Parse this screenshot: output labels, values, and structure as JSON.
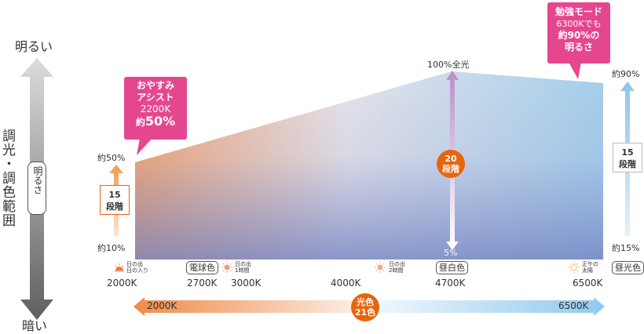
{
  "left_axis": {
    "top_label": "明るい",
    "bottom_label": "暗い",
    "title": "調光・調色範囲",
    "bar_label": "明るさ"
  },
  "callouts": {
    "oyasumi": {
      "line1": "おやすみ",
      "line2": "アシスト",
      "line3": "2200K",
      "line4_prefix": "約",
      "line4_value": "50%"
    },
    "benkyo": {
      "line1": "勉強モード",
      "line2": "6300Kでも",
      "line3": "約90%の",
      "line4": "明るさ"
    }
  },
  "chart": {
    "left_top": "約50%",
    "left_bottom": "約10%",
    "left_steps": {
      "line1": "15",
      "line2": "段階"
    },
    "right_top": "約90%",
    "right_bottom": "約15%",
    "right_steps": {
      "line1": "15",
      "line2": "段階"
    },
    "peak_label": "100%全光",
    "peak_bottom": "5%",
    "center_steps": {
      "line1": "20",
      "line2": "段階"
    }
  },
  "color_points": [
    {
      "kelvin": "2000K",
      "note_l1": "日の出",
      "note_l2": "日の入り"
    },
    {
      "kelvin": "2700K",
      "badge": "電球色"
    },
    {
      "kelvin": "3000K",
      "note_l1": "日の出",
      "note_l2": "1時間"
    },
    {
      "kelvin": "4000K"
    },
    {
      "kelvin": "4700K",
      "badge": "昼白色",
      "note_l1": "日の出",
      "note_l2": "2時間"
    },
    {
      "kelvin": "6500K",
      "note_l1": "正午の",
      "note_l2": "太陽"
    }
  ],
  "right_badge": "昼光色",
  "bottom_arrow": {
    "left": "2000K",
    "right": "6500K",
    "center_line1": "光色",
    "center_line2": "21色"
  },
  "colors": {
    "pink": "#e5478e",
    "orange": "#e8650f",
    "warm": "#f4a673",
    "cool": "#9ccbea"
  }
}
